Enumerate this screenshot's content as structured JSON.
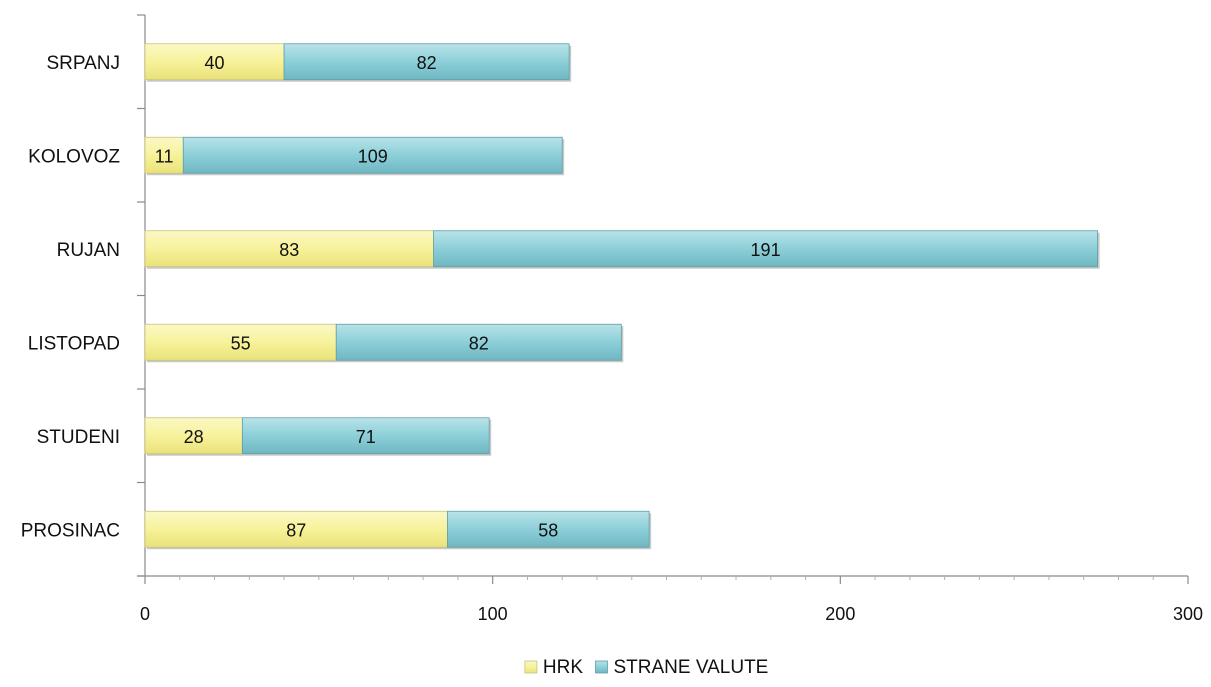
{
  "chart_data": {
    "type": "bar",
    "orientation": "horizontal",
    "stacked": true,
    "categories": [
      "SRPANJ",
      "KOLOVOZ",
      "RUJAN",
      "LISTOPAD",
      "STUDENI",
      "PROSINAC"
    ],
    "series": [
      {
        "name": "HRK",
        "values": [
          40,
          11,
          83,
          55,
          28,
          87
        ],
        "color": "#f7f29a"
      },
      {
        "name": "STRANE VALUTE",
        "values": [
          82,
          109,
          191,
          82,
          71,
          58
        ],
        "color": "#8ccfd8"
      }
    ],
    "xlim": [
      0,
      300
    ],
    "xticks": [
      0,
      100,
      200,
      300
    ],
    "grid": false,
    "legend": "bottom",
    "title": "",
    "xlabel": "",
    "ylabel": ""
  }
}
